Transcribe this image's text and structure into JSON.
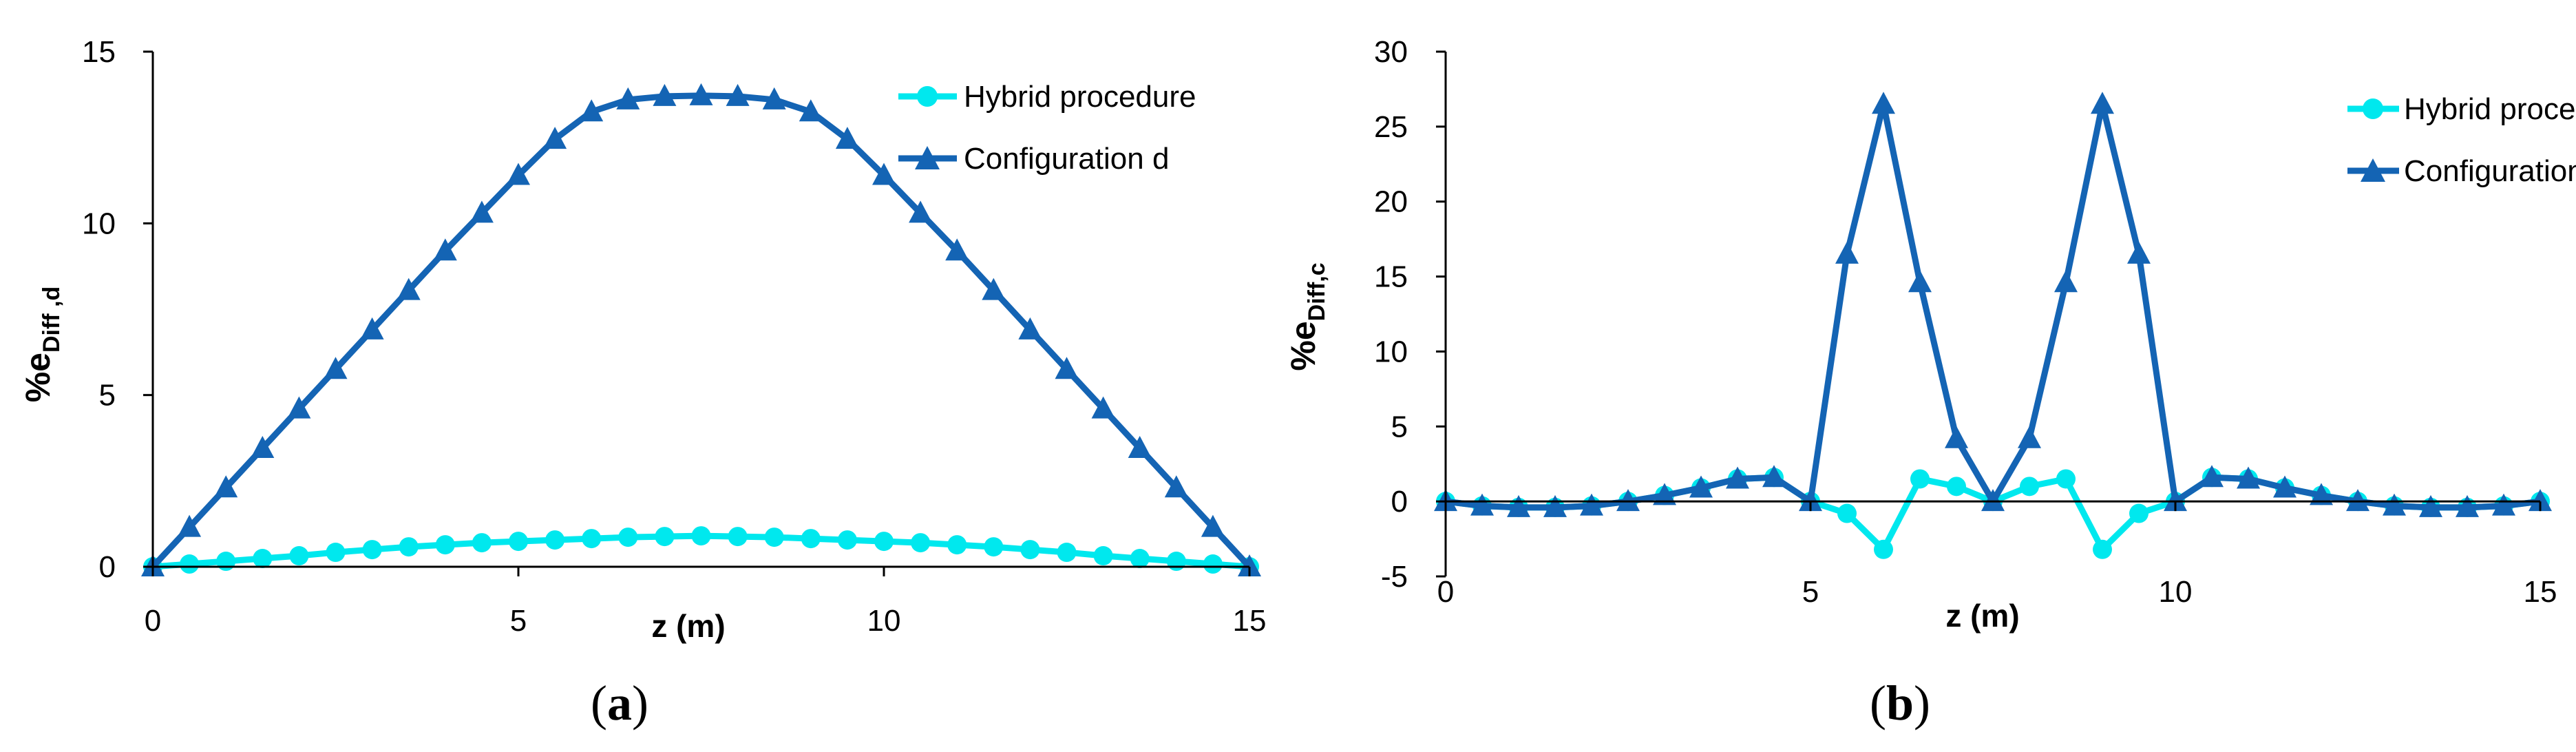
{
  "colors": {
    "hybrid": "#00e8ee",
    "config": "#1464b4",
    "axis": "#000000"
  },
  "chart_data": [
    {
      "id": "a",
      "type": "line",
      "panel_label": "a",
      "xlabel": "z (m)",
      "ylabel_main": "%e",
      "ylabel_sub": "Diff ,d",
      "xlim": [
        0,
        15
      ],
      "ylim": [
        0,
        15
      ],
      "xticks": [
        "0",
        "5",
        "10",
        "15"
      ],
      "yticks": [
        "0",
        "5",
        "10",
        "15"
      ],
      "series": [
        {
          "name": "Hybrid procedure",
          "marker": "circle",
          "x": [
            0,
            0.5,
            1,
            1.5,
            2,
            2.5,
            3,
            3.5,
            4,
            4.5,
            5,
            5.5,
            6,
            6.5,
            7,
            7.5,
            8,
            8.5,
            9,
            9.5,
            10,
            10.5,
            11,
            11.5,
            12,
            12.5,
            13,
            13.5,
            14,
            14.5,
            15
          ],
          "values": [
            0,
            0.08,
            0.16,
            0.24,
            0.32,
            0.42,
            0.5,
            0.58,
            0.64,
            0.7,
            0.74,
            0.78,
            0.82,
            0.86,
            0.88,
            0.9,
            0.88,
            0.86,
            0.82,
            0.78,
            0.74,
            0.7,
            0.64,
            0.58,
            0.5,
            0.42,
            0.32,
            0.24,
            0.16,
            0.08,
            0
          ]
        },
        {
          "name": "Configuration d",
          "marker": "triangle",
          "x": [
            0,
            0.5,
            1,
            1.5,
            2,
            2.5,
            3,
            3.5,
            4,
            4.5,
            5,
            5.5,
            6,
            6.5,
            7,
            7.5,
            8,
            8.5,
            9,
            9.5,
            10,
            10.5,
            11,
            11.5,
            12,
            12.5,
            13,
            13.5,
            14,
            14.5,
            15
          ],
          "values": [
            0,
            1.15,
            2.3,
            3.45,
            4.6,
            5.75,
            6.9,
            8.05,
            9.2,
            10.3,
            11.4,
            12.45,
            13.25,
            13.6,
            13.7,
            13.72,
            13.7,
            13.6,
            13.25,
            12.45,
            11.4,
            10.3,
            9.2,
            8.05,
            6.9,
            5.75,
            4.6,
            3.45,
            2.3,
            1.15,
            0
          ]
        }
      ]
    },
    {
      "id": "b",
      "type": "line",
      "panel_label": "b",
      "xlabel": "z (m)",
      "ylabel_main": "%e",
      "ylabel_sub": "Diff,c",
      "xlim": [
        0,
        15
      ],
      "ylim": [
        -5,
        30
      ],
      "xticks": [
        "0",
        "5",
        "10",
        "15"
      ],
      "yticks": [
        "-5",
        "0",
        "5",
        "10",
        "15",
        "20",
        "25",
        "30"
      ],
      "series": [
        {
          "name": "Hybrid procedure",
          "marker": "circle",
          "x": [
            0,
            0.5,
            1,
            1.5,
            2,
            2.5,
            3,
            3.5,
            4,
            4.5,
            5,
            5.5,
            6,
            6.5,
            7,
            7.5,
            8,
            8.5,
            9,
            9.5,
            10,
            10.5,
            11,
            11.5,
            12,
            12.5,
            13,
            13.5,
            14,
            14.5,
            15
          ],
          "values": [
            0,
            -0.3,
            -0.4,
            -0.4,
            -0.3,
            0,
            0.4,
            0.9,
            1.5,
            1.6,
            0,
            -0.8,
            -3.2,
            1.5,
            1.0,
            0,
            1.0,
            1.5,
            -3.2,
            -0.8,
            0,
            1.6,
            1.5,
            0.9,
            0.4,
            0,
            -0.3,
            -0.4,
            -0.4,
            -0.3,
            0
          ]
        },
        {
          "name": "Configuration d",
          "marker": "triangle",
          "x": [
            0,
            0.5,
            1,
            1.5,
            2,
            2.5,
            3,
            3.5,
            4,
            4.5,
            5,
            5.5,
            6,
            6.5,
            7,
            7.5,
            8,
            8.5,
            9,
            9.5,
            10,
            10.5,
            11,
            11.5,
            12,
            12.5,
            13,
            13.5,
            14,
            14.5,
            15
          ],
          "values": [
            0,
            -0.3,
            -0.4,
            -0.4,
            -0.3,
            0,
            0.4,
            0.9,
            1.5,
            1.6,
            0,
            16.5,
            26.5,
            14.6,
            4.2,
            0,
            4.2,
            14.6,
            26.5,
            16.5,
            0,
            1.6,
            1.5,
            0.9,
            0.4,
            0,
            -0.3,
            -0.4,
            -0.4,
            -0.3,
            0
          ]
        }
      ]
    }
  ]
}
